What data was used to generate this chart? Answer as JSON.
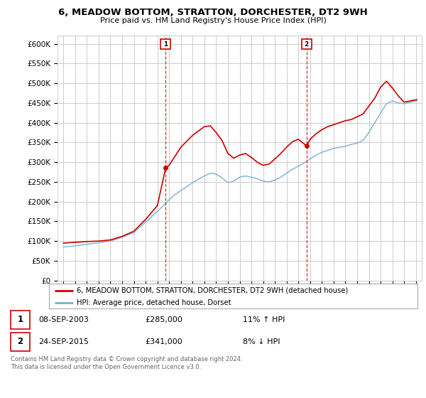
{
  "title": "6, MEADOW BOTTOM, STRATTON, DORCHESTER, DT2 9WH",
  "subtitle": "Price paid vs. HM Land Registry's House Price Index (HPI)",
  "legend_line1": "6, MEADOW BOTTOM, STRATTON, DORCHESTER, DT2 9WH (detached house)",
  "legend_line2": "HPI: Average price, detached house, Dorset",
  "annotation1_date": "08-SEP-2003",
  "annotation1_price": "£285,000",
  "annotation1_hpi": "11% ↑ HPI",
  "annotation2_date": "24-SEP-2015",
  "annotation2_price": "£341,000",
  "annotation2_hpi": "8% ↓ HPI",
  "footer": "Contains HM Land Registry data © Crown copyright and database right 2024.\nThis data is licensed under the Open Government Licence v3.0.",
  "sale1_year": 2003.7,
  "sale1_price": 285000,
  "sale2_year": 2015.7,
  "sale2_price": 341000,
  "red_color": "#cc0000",
  "blue_color": "#7ab0d4",
  "background_color": "#ffffff",
  "grid_color": "#cccccc",
  "ylim": [
    0,
    620000
  ],
  "yticks": [
    0,
    50000,
    100000,
    150000,
    200000,
    250000,
    300000,
    350000,
    400000,
    450000,
    500000,
    550000,
    600000
  ],
  "xlim_start": 1994.5,
  "xlim_end": 2025.5,
  "hpi_breakpoints": [
    [
      1995.0,
      85000
    ],
    [
      1996.0,
      88000
    ],
    [
      1997.0,
      92000
    ],
    [
      1998.0,
      96000
    ],
    [
      1999.0,
      100000
    ],
    [
      2000.0,
      110000
    ],
    [
      2001.0,
      122000
    ],
    [
      2002.0,
      148000
    ],
    [
      2003.0,
      175000
    ],
    [
      2004.0,
      205000
    ],
    [
      2004.5,
      218000
    ],
    [
      2005.0,
      228000
    ],
    [
      2006.0,
      248000
    ],
    [
      2007.0,
      265000
    ],
    [
      2007.5,
      272000
    ],
    [
      2008.0,
      270000
    ],
    [
      2008.5,
      260000
    ],
    [
      2009.0,
      248000
    ],
    [
      2009.5,
      252000
    ],
    [
      2010.0,
      262000
    ],
    [
      2010.5,
      265000
    ],
    [
      2011.0,
      262000
    ],
    [
      2011.5,
      258000
    ],
    [
      2012.0,
      252000
    ],
    [
      2012.5,
      250000
    ],
    [
      2013.0,
      255000
    ],
    [
      2013.5,
      262000
    ],
    [
      2014.0,
      272000
    ],
    [
      2014.5,
      282000
    ],
    [
      2015.0,
      290000
    ],
    [
      2015.5,
      298000
    ],
    [
      2016.0,
      308000
    ],
    [
      2016.5,
      318000
    ],
    [
      2017.0,
      325000
    ],
    [
      2017.5,
      330000
    ],
    [
      2018.0,
      335000
    ],
    [
      2018.5,
      338000
    ],
    [
      2019.0,
      340000
    ],
    [
      2019.5,
      345000
    ],
    [
      2020.0,
      348000
    ],
    [
      2020.5,
      355000
    ],
    [
      2021.0,
      375000
    ],
    [
      2021.5,
      400000
    ],
    [
      2022.0,
      425000
    ],
    [
      2022.5,
      448000
    ],
    [
      2023.0,
      455000
    ],
    [
      2023.5,
      450000
    ],
    [
      2024.0,
      448000
    ],
    [
      2024.5,
      452000
    ],
    [
      2025.0,
      455000
    ]
  ],
  "price_breakpoints": [
    [
      1995.0,
      95000
    ],
    [
      1996.0,
      97000
    ],
    [
      1997.0,
      99000
    ],
    [
      1998.0,
      100000
    ],
    [
      1999.0,
      103000
    ],
    [
      2000.0,
      112000
    ],
    [
      2001.0,
      125000
    ],
    [
      2002.0,
      155000
    ],
    [
      2003.0,
      190000
    ],
    [
      2003.7,
      285000
    ],
    [
      2004.0,
      292000
    ],
    [
      2005.0,
      338000
    ],
    [
      2006.0,
      368000
    ],
    [
      2007.0,
      390000
    ],
    [
      2007.5,
      392000
    ],
    [
      2008.0,
      375000
    ],
    [
      2008.5,
      355000
    ],
    [
      2009.0,
      322000
    ],
    [
      2009.5,
      310000
    ],
    [
      2010.0,
      318000
    ],
    [
      2010.5,
      322000
    ],
    [
      2011.0,
      312000
    ],
    [
      2011.5,
      300000
    ],
    [
      2012.0,
      292000
    ],
    [
      2012.5,
      295000
    ],
    [
      2013.0,
      308000
    ],
    [
      2013.5,
      322000
    ],
    [
      2014.0,
      338000
    ],
    [
      2014.5,
      352000
    ],
    [
      2015.0,
      358000
    ],
    [
      2015.7,
      341000
    ],
    [
      2016.0,
      358000
    ],
    [
      2016.5,
      372000
    ],
    [
      2017.0,
      382000
    ],
    [
      2017.5,
      390000
    ],
    [
      2018.0,
      395000
    ],
    [
      2018.5,
      400000
    ],
    [
      2019.0,
      405000
    ],
    [
      2019.5,
      408000
    ],
    [
      2020.0,
      415000
    ],
    [
      2020.5,
      422000
    ],
    [
      2021.0,
      442000
    ],
    [
      2021.5,
      462000
    ],
    [
      2022.0,
      490000
    ],
    [
      2022.5,
      505000
    ],
    [
      2023.0,
      488000
    ],
    [
      2023.5,
      468000
    ],
    [
      2024.0,
      452000
    ],
    [
      2024.5,
      455000
    ],
    [
      2025.0,
      458000
    ]
  ]
}
